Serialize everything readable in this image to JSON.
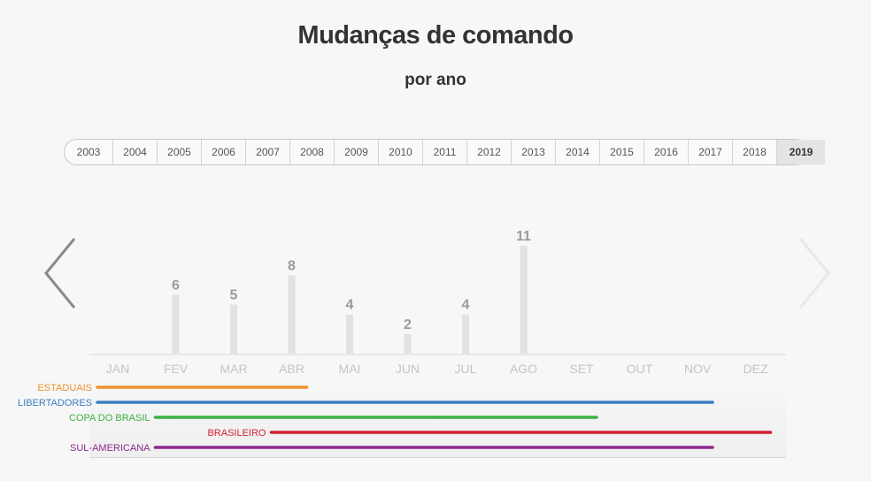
{
  "title": "Mudanças de comando",
  "subtitle": "por ano",
  "years": [
    "2003",
    "2004",
    "2005",
    "2006",
    "2007",
    "2008",
    "2009",
    "2010",
    "2011",
    "2012",
    "2013",
    "2014",
    "2015",
    "2016",
    "2017",
    "2018",
    "2019"
  ],
  "active_year": "2019",
  "colors": {
    "bar": "#e2e2e2",
    "value": "#9a9a9a",
    "month": "#c4c4c4",
    "estaduais": "#f0922e",
    "libertadores": "#3c7fc0",
    "copa_do_brasil": "#3cb044",
    "brasileiro": "#d42032",
    "sul_americana": "#8a2a8c"
  },
  "chart_data": {
    "type": "bar",
    "title": "Mudanças de comando",
    "subtitle": "por ano",
    "categories": [
      "JAN",
      "FEV",
      "MAR",
      "ABR",
      "MAI",
      "JUN",
      "JUL",
      "AGO",
      "SET",
      "OUT",
      "NOV",
      "DEZ"
    ],
    "values": [
      null,
      6,
      5,
      8,
      4,
      2,
      4,
      11,
      null,
      null,
      null,
      null
    ],
    "ylim": [
      0,
      11
    ],
    "grid": false,
    "competitions": [
      {
        "name": "ESTADUAIS",
        "start": "JAN",
        "end": "ABR",
        "color": "#f0922e"
      },
      {
        "name": "LIBERTADORES",
        "start": "JAN",
        "end": "NOV",
        "color": "#3c7fc0"
      },
      {
        "name": "COPA DO BRASIL",
        "start": "FEV",
        "end": "SET",
        "color": "#3cb044"
      },
      {
        "name": "BRASILEIRO",
        "start": "ABR",
        "end": "DEZ",
        "color": "#d42032"
      },
      {
        "name": "SUL-AMERICANA",
        "start": "FEV",
        "end": "NOV",
        "color": "#8a2a8c"
      }
    ]
  }
}
